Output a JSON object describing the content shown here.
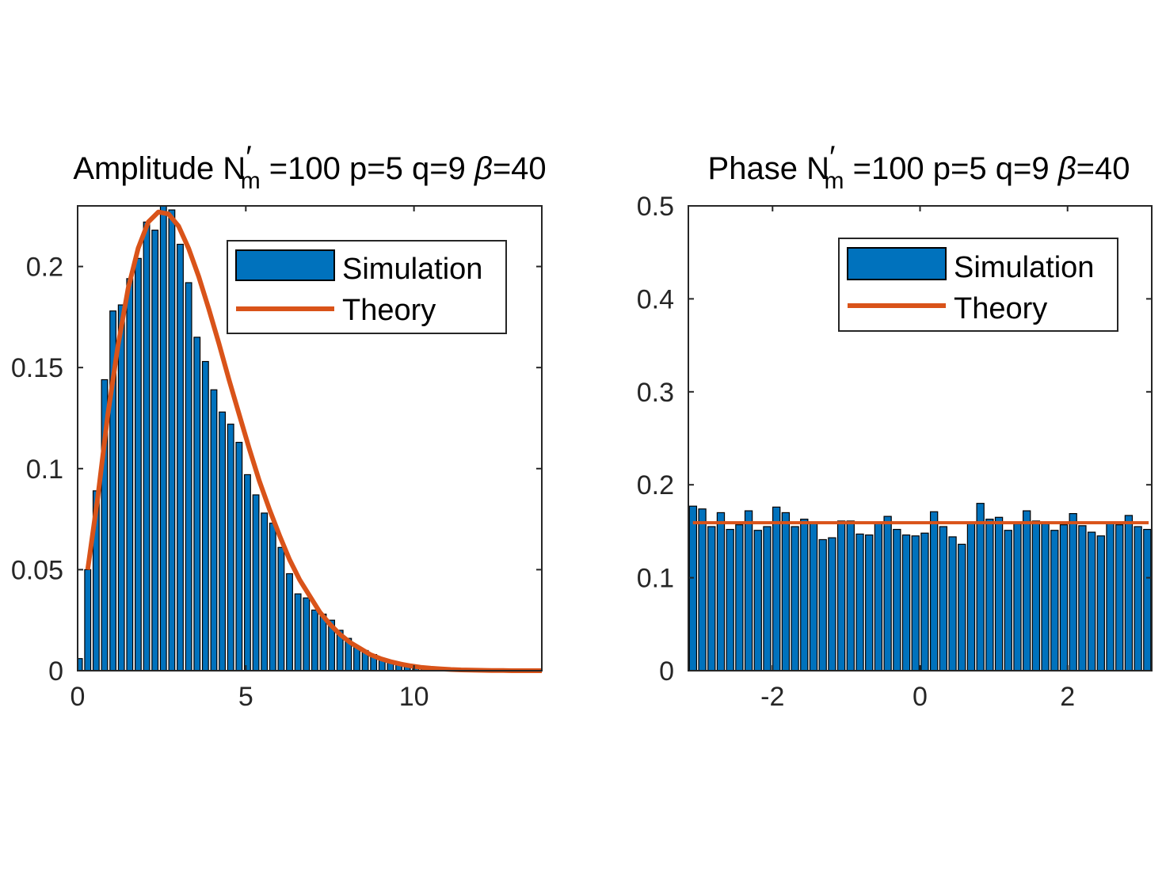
{
  "chart_data": [
    {
      "type": "bar",
      "title": {
        "prefix": "Amplitude N",
        "prime": "′",
        "subscript": "m",
        "suffix": " =100 p=5 q=9 ",
        "greek": "β",
        "greek_value": "=40"
      },
      "xlabel": "",
      "ylabel": "",
      "xlim": [
        0,
        13.8
      ],
      "ylim": [
        0,
        0.23
      ],
      "xticks": [
        0,
        5,
        10
      ],
      "xtick_labels": [
        "0",
        "5",
        "10"
      ],
      "yticks": [
        0,
        0.05,
        0.1,
        0.15,
        0.2
      ],
      "ytick_labels": [
        "0",
        "0.05",
        "0.1",
        "0.15",
        "0.2"
      ],
      "legend": {
        "position": "top-right",
        "entries": [
          "Simulation",
          "Theory"
        ]
      },
      "colors": {
        "bars": "#0072BD",
        "theory": "#D95319"
      },
      "series": [
        {
          "name": "Simulation",
          "kind": "bar",
          "bin_width": 0.25,
          "x": [
            0.05,
            0.3,
            0.55,
            0.8,
            1.05,
            1.3,
            1.55,
            1.8,
            2.05,
            2.3,
            2.55,
            2.8,
            3.05,
            3.3,
            3.55,
            3.8,
            4.05,
            4.3,
            4.55,
            4.8,
            5.05,
            5.3,
            5.55,
            5.8,
            6.05,
            6.3,
            6.55,
            6.8,
            7.05,
            7.3,
            7.55,
            7.8,
            8.05,
            8.3,
            8.55,
            8.8,
            9.05,
            9.3,
            9.55,
            9.8,
            10.05,
            10.3,
            10.55,
            10.8,
            11.05,
            11.3,
            11.55,
            11.8,
            12.05,
            12.3,
            12.55,
            12.8,
            13.05,
            13.3,
            13.55
          ],
          "values": [
            0.006,
            0.05,
            0.089,
            0.144,
            0.178,
            0.181,
            0.194,
            0.204,
            0.222,
            0.218,
            0.23,
            0.228,
            0.211,
            0.192,
            0.165,
            0.153,
            0.139,
            0.128,
            0.122,
            0.113,
            0.097,
            0.087,
            0.078,
            0.073,
            0.061,
            0.048,
            0.038,
            0.036,
            0.03,
            0.028,
            0.025,
            0.02,
            0.016,
            0.012,
            0.01,
            0.008,
            0.006,
            0.005,
            0.004,
            0.003,
            0.002,
            0.002,
            0.001,
            0.001,
            0.001,
            0.001,
            0.001,
            0.0005,
            0.0005,
            0.0005,
            0.0005,
            0.0003,
            0.0003,
            0.0003,
            0.0003
          ]
        },
        {
          "name": "Theory",
          "kind": "line",
          "x": [
            0.3,
            0.6,
            0.9,
            1.2,
            1.5,
            1.8,
            2.1,
            2.4,
            2.7,
            3.0,
            3.3,
            3.6,
            3.9,
            4.2,
            4.5,
            4.8,
            5.1,
            5.4,
            5.7,
            6.0,
            6.3,
            6.6,
            6.9,
            7.2,
            7.5,
            7.8,
            8.1,
            8.4,
            8.7,
            9.0,
            9.3,
            9.6,
            9.9,
            10.2,
            10.5,
            10.8,
            11.1,
            11.4,
            11.7,
            12.0,
            12.3,
            12.6,
            12.9,
            13.2,
            13.5,
            13.8
          ],
          "values": [
            0.05,
            0.086,
            0.127,
            0.161,
            0.189,
            0.209,
            0.222,
            0.227,
            0.226,
            0.22,
            0.209,
            0.195,
            0.179,
            0.162,
            0.144,
            0.127,
            0.11,
            0.094,
            0.08,
            0.067,
            0.055,
            0.045,
            0.037,
            0.029,
            0.023,
            0.018,
            0.014,
            0.011,
            0.008,
            0.006,
            0.0045,
            0.0033,
            0.0024,
            0.0017,
            0.0012,
            0.0009,
            0.0006,
            0.0004,
            0.0003,
            0.0002,
            0.0001,
            0.0001,
            0,
            0,
            0,
            0
          ]
        }
      ]
    },
    {
      "type": "bar",
      "title": {
        "prefix": "Phase N",
        "prime": "′",
        "subscript": "m",
        "suffix": " =100 p=5 q=9 ",
        "greek": "β",
        "greek_value": "=40"
      },
      "xlabel": "",
      "ylabel": "",
      "xlim": [
        -3.1416,
        3.1416
      ],
      "ylim": [
        0,
        0.5
      ],
      "xticks": [
        -2,
        0,
        2
      ],
      "xtick_labels": [
        "-2",
        "0",
        "2"
      ],
      "yticks": [
        0,
        0.1,
        0.2,
        0.3,
        0.4,
        0.5
      ],
      "ytick_labels": [
        "0",
        "0.1",
        "0.2",
        "0.3",
        "0.4",
        "0.5"
      ],
      "legend": {
        "position": "top-right",
        "entries": [
          "Simulation",
          "Theory"
        ]
      },
      "colors": {
        "bars": "#0072BD",
        "theory": "#D95319"
      },
      "series": [
        {
          "name": "Simulation",
          "kind": "bar",
          "bin_width": 0.1257,
          "x_start": -3.1416,
          "values": [
            0.177,
            0.174,
            0.155,
            0.17,
            0.152,
            0.157,
            0.172,
            0.151,
            0.155,
            0.176,
            0.17,
            0.155,
            0.163,
            0.16,
            0.141,
            0.143,
            0.161,
            0.161,
            0.147,
            0.146,
            0.16,
            0.166,
            0.152,
            0.146,
            0.145,
            0.148,
            0.171,
            0.155,
            0.144,
            0.136,
            0.159,
            0.18,
            0.163,
            0.165,
            0.151,
            0.158,
            0.172,
            0.161,
            0.158,
            0.151,
            0.157,
            0.169,
            0.156,
            0.149,
            0.145,
            0.16,
            0.157,
            0.167,
            0.155,
            0.152
          ]
        },
        {
          "name": "Theory",
          "kind": "line",
          "x": [
            -3.08,
            3.1
          ],
          "values": [
            0.1592,
            0.1592
          ]
        }
      ]
    }
  ]
}
